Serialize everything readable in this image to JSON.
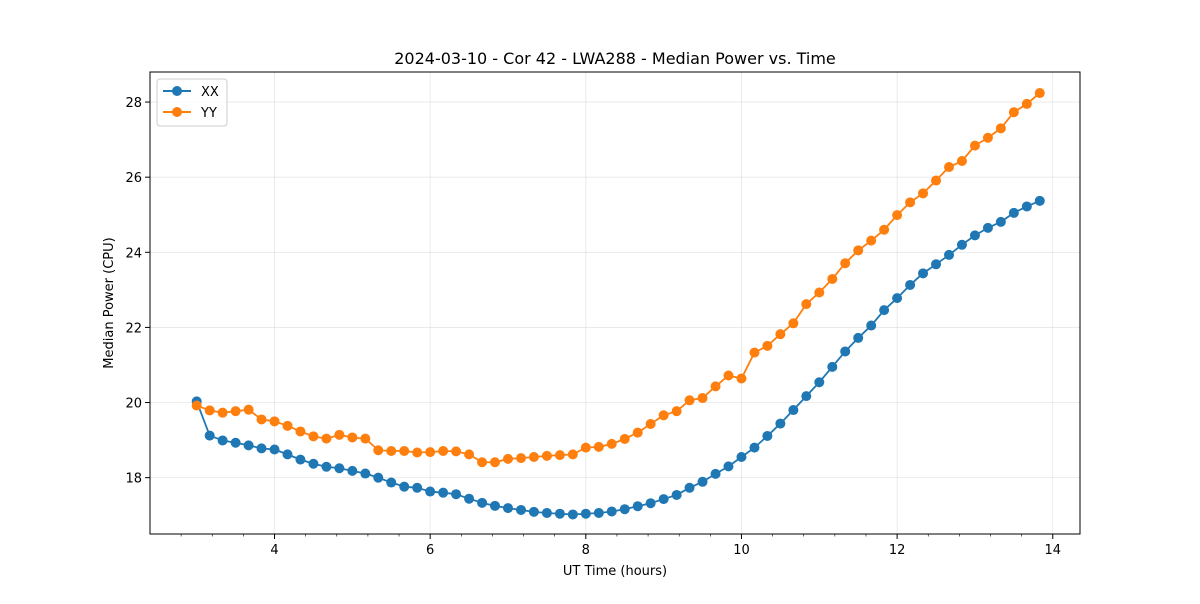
{
  "chart_data": {
    "type": "line",
    "title": "2024-03-10 - Cor 42 - LWA288 - Median Power vs. Time",
    "xlabel": "UT Time (hours)",
    "ylabel": "Median Power (CPU)",
    "xlim": [
      2.4,
      14.35
    ],
    "ylim": [
      16.5,
      28.8
    ],
    "xticks": [
      4,
      6,
      8,
      10,
      12,
      14
    ],
    "xtick_labels": [
      "4",
      "6",
      "8",
      "10",
      "12",
      "14"
    ],
    "yticks": [
      18,
      20,
      22,
      24,
      26,
      28
    ],
    "ytick_labels": [
      "18",
      "20",
      "22",
      "24",
      "26",
      "28"
    ],
    "grid": true,
    "legend_position": "top-left",
    "x": [
      3.0,
      3.167,
      3.333,
      3.5,
      3.667,
      3.833,
      4.0,
      4.167,
      4.333,
      4.5,
      4.667,
      4.833,
      5.0,
      5.167,
      5.333,
      5.5,
      5.667,
      5.833,
      6.0,
      6.167,
      6.333,
      6.5,
      6.667,
      6.833,
      7.0,
      7.167,
      7.333,
      7.5,
      7.667,
      7.833,
      8.0,
      8.167,
      8.333,
      8.5,
      8.667,
      8.833,
      9.0,
      9.167,
      9.333,
      9.5,
      9.667,
      9.833,
      10.0,
      10.167,
      10.333,
      10.5,
      10.667,
      10.833,
      11.0,
      11.167,
      11.333,
      11.5,
      11.667,
      11.833,
      12.0,
      12.167,
      12.333,
      12.5,
      12.667,
      12.833,
      13.0,
      13.167,
      13.333,
      13.5,
      13.667,
      13.833
    ],
    "series": [
      {
        "name": "XX",
        "color": "#1f77b4",
        "values": [
          20.03,
          19.12,
          18.99,
          18.93,
          18.86,
          18.78,
          18.75,
          18.62,
          18.48,
          18.37,
          18.29,
          18.25,
          18.18,
          18.11,
          18.0,
          17.87,
          17.76,
          17.73,
          17.63,
          17.6,
          17.56,
          17.44,
          17.33,
          17.25,
          17.19,
          17.14,
          17.09,
          17.06,
          17.04,
          17.02,
          17.04,
          17.06,
          17.1,
          17.16,
          17.24,
          17.32,
          17.43,
          17.54,
          17.73,
          17.89,
          18.1,
          18.3,
          18.55,
          18.8,
          19.11,
          19.44,
          19.8,
          20.17,
          20.54,
          20.95,
          21.36,
          21.72,
          22.05,
          22.46,
          22.78,
          23.13,
          23.44,
          23.68,
          23.93,
          24.2,
          24.45,
          24.65,
          24.81,
          25.05,
          25.22,
          25.37
        ]
      },
      {
        "name": "YY",
        "color": "#ff7f0e",
        "values": [
          19.92,
          19.79,
          19.73,
          19.77,
          19.81,
          19.55,
          19.5,
          19.38,
          19.23,
          19.1,
          19.04,
          19.14,
          19.07,
          19.04,
          18.73,
          18.71,
          18.71,
          18.67,
          18.68,
          18.71,
          18.7,
          18.62,
          18.41,
          18.41,
          18.5,
          18.52,
          18.55,
          18.58,
          18.6,
          18.62,
          18.8,
          18.82,
          18.9,
          19.03,
          19.2,
          19.43,
          19.66,
          19.77,
          20.06,
          20.12,
          20.43,
          20.72,
          20.64,
          21.33,
          21.51,
          21.82,
          22.11,
          22.62,
          22.93,
          23.29,
          23.71,
          24.05,
          24.31,
          24.6,
          24.99,
          25.33,
          25.57,
          25.91,
          26.27,
          26.43,
          26.84,
          27.05,
          27.3,
          27.73,
          27.95,
          28.24
        ]
      }
    ]
  }
}
